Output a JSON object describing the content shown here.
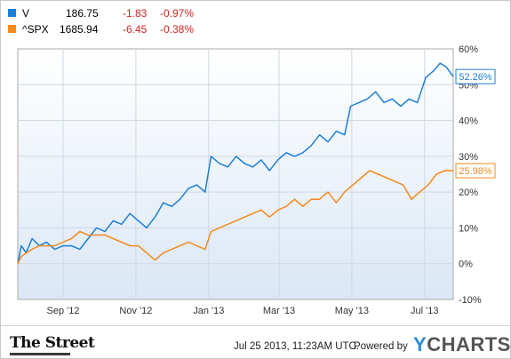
{
  "legend": [
    {
      "symbol": "V",
      "price": "186.75",
      "change": "-1.83",
      "pct": "-0.97%",
      "color": "#1b7fd6"
    },
    {
      "symbol": "^SPX",
      "price": "1685.94",
      "change": "-6.45",
      "pct": "-0.38%",
      "color": "#f48a1c"
    }
  ],
  "chart_data": {
    "type": "line",
    "ylim": [
      -10,
      60
    ],
    "y_tick_labels": [
      "60%",
      "50%",
      "40%",
      "30%",
      "20%",
      "10%",
      "0%",
      "-10%"
    ],
    "y_tick_values": [
      60,
      50,
      40,
      30,
      20,
      10,
      0,
      -10
    ],
    "x_tick_labels": [
      "Sep '12",
      "Nov '12",
      "Jan '13",
      "Mar '13",
      "May '13",
      "Jul '13"
    ],
    "x_tick_dates": [
      "2012-09-01",
      "2012-11-01",
      "2013-01-01",
      "2013-03-01",
      "2013-05-01",
      "2013-07-01"
    ],
    "xlim": [
      "2012-07-25",
      "2013-07-25"
    ],
    "grid": true,
    "series": [
      {
        "name": "V",
        "color": "#1b7fd6",
        "end_label": "52.26%",
        "points": [
          [
            "2012-07-25",
            0
          ],
          [
            "2012-07-28",
            5
          ],
          [
            "2012-08-01",
            3
          ],
          [
            "2012-08-06",
            7
          ],
          [
            "2012-08-12",
            5
          ],
          [
            "2012-08-18",
            6
          ],
          [
            "2012-08-25",
            4
          ],
          [
            "2012-09-01",
            5
          ],
          [
            "2012-09-08",
            5
          ],
          [
            "2012-09-15",
            4
          ],
          [
            "2012-09-22",
            7
          ],
          [
            "2012-09-29",
            10
          ],
          [
            "2012-10-06",
            9
          ],
          [
            "2012-10-13",
            12
          ],
          [
            "2012-10-20",
            11
          ],
          [
            "2012-10-27",
            14
          ],
          [
            "2012-11-03",
            12
          ],
          [
            "2012-11-10",
            10
          ],
          [
            "2012-11-17",
            13
          ],
          [
            "2012-11-24",
            17
          ],
          [
            "2012-12-01",
            16
          ],
          [
            "2012-12-08",
            18
          ],
          [
            "2012-12-15",
            21
          ],
          [
            "2012-12-22",
            22
          ],
          [
            "2012-12-29",
            20
          ],
          [
            "2013-01-03",
            30
          ],
          [
            "2013-01-10",
            28
          ],
          [
            "2013-01-17",
            27
          ],
          [
            "2013-01-24",
            30
          ],
          [
            "2013-01-31",
            28
          ],
          [
            "2013-02-07",
            27
          ],
          [
            "2013-02-14",
            29
          ],
          [
            "2013-02-21",
            26
          ],
          [
            "2013-02-28",
            29
          ],
          [
            "2013-03-07",
            31
          ],
          [
            "2013-03-14",
            30
          ],
          [
            "2013-03-21",
            31
          ],
          [
            "2013-03-28",
            33
          ],
          [
            "2013-04-04",
            36
          ],
          [
            "2013-04-11",
            34
          ],
          [
            "2013-04-18",
            37
          ],
          [
            "2013-04-25",
            36
          ],
          [
            "2013-04-30",
            44
          ],
          [
            "2013-05-07",
            45
          ],
          [
            "2013-05-14",
            46
          ],
          [
            "2013-05-21",
            48
          ],
          [
            "2013-05-28",
            45
          ],
          [
            "2013-06-04",
            46
          ],
          [
            "2013-06-11",
            44
          ],
          [
            "2013-06-18",
            46
          ],
          [
            "2013-06-25",
            45
          ],
          [
            "2013-07-02",
            52
          ],
          [
            "2013-07-09",
            54
          ],
          [
            "2013-07-14",
            56
          ],
          [
            "2013-07-19",
            55
          ],
          [
            "2013-07-25",
            52.26
          ]
        ]
      },
      {
        "name": "^SPX",
        "color": "#f48a1c",
        "end_label": "25.98%",
        "points": [
          [
            "2012-07-25",
            0
          ],
          [
            "2012-07-28",
            2
          ],
          [
            "2012-08-01",
            3
          ],
          [
            "2012-08-06",
            4
          ],
          [
            "2012-08-12",
            5
          ],
          [
            "2012-08-18",
            5
          ],
          [
            "2012-08-25",
            5
          ],
          [
            "2012-09-01",
            6
          ],
          [
            "2012-09-08",
            7
          ],
          [
            "2012-09-15",
            9
          ],
          [
            "2012-09-22",
            8
          ],
          [
            "2012-09-29",
            8
          ],
          [
            "2012-10-06",
            8
          ],
          [
            "2012-10-13",
            7
          ],
          [
            "2012-10-20",
            6
          ],
          [
            "2012-10-27",
            5
          ],
          [
            "2012-11-03",
            5
          ],
          [
            "2012-11-10",
            3
          ],
          [
            "2012-11-17",
            1
          ],
          [
            "2012-11-24",
            3
          ],
          [
            "2012-12-01",
            4
          ],
          [
            "2012-12-08",
            5
          ],
          [
            "2012-12-15",
            6
          ],
          [
            "2012-12-22",
            5
          ],
          [
            "2012-12-29",
            4
          ],
          [
            "2013-01-03",
            9
          ],
          [
            "2013-01-10",
            10
          ],
          [
            "2013-01-17",
            11
          ],
          [
            "2013-01-24",
            12
          ],
          [
            "2013-01-31",
            13
          ],
          [
            "2013-02-07",
            14
          ],
          [
            "2013-02-14",
            15
          ],
          [
            "2013-02-21",
            13
          ],
          [
            "2013-02-28",
            15
          ],
          [
            "2013-03-07",
            16
          ],
          [
            "2013-03-14",
            18
          ],
          [
            "2013-03-21",
            16
          ],
          [
            "2013-03-28",
            18
          ],
          [
            "2013-04-04",
            18
          ],
          [
            "2013-04-11",
            20
          ],
          [
            "2013-04-18",
            17
          ],
          [
            "2013-04-25",
            20
          ],
          [
            "2013-05-02",
            22
          ],
          [
            "2013-05-09",
            24
          ],
          [
            "2013-05-16",
            26
          ],
          [
            "2013-05-23",
            25
          ],
          [
            "2013-05-30",
            24
          ],
          [
            "2013-06-06",
            23
          ],
          [
            "2013-06-13",
            22
          ],
          [
            "2013-06-20",
            18
          ],
          [
            "2013-06-27",
            20
          ],
          [
            "2013-07-04",
            22
          ],
          [
            "2013-07-11",
            25
          ],
          [
            "2013-07-18",
            26
          ],
          [
            "2013-07-25",
            25.98
          ]
        ]
      }
    ]
  },
  "footer": {
    "brand": "The Street",
    "timestamp": "Jul 25 2013, 11:23AM UTC.",
    "powered_by": "Powered by",
    "ycharts_y": "Y",
    "ycharts_rest": "CHARTS"
  }
}
